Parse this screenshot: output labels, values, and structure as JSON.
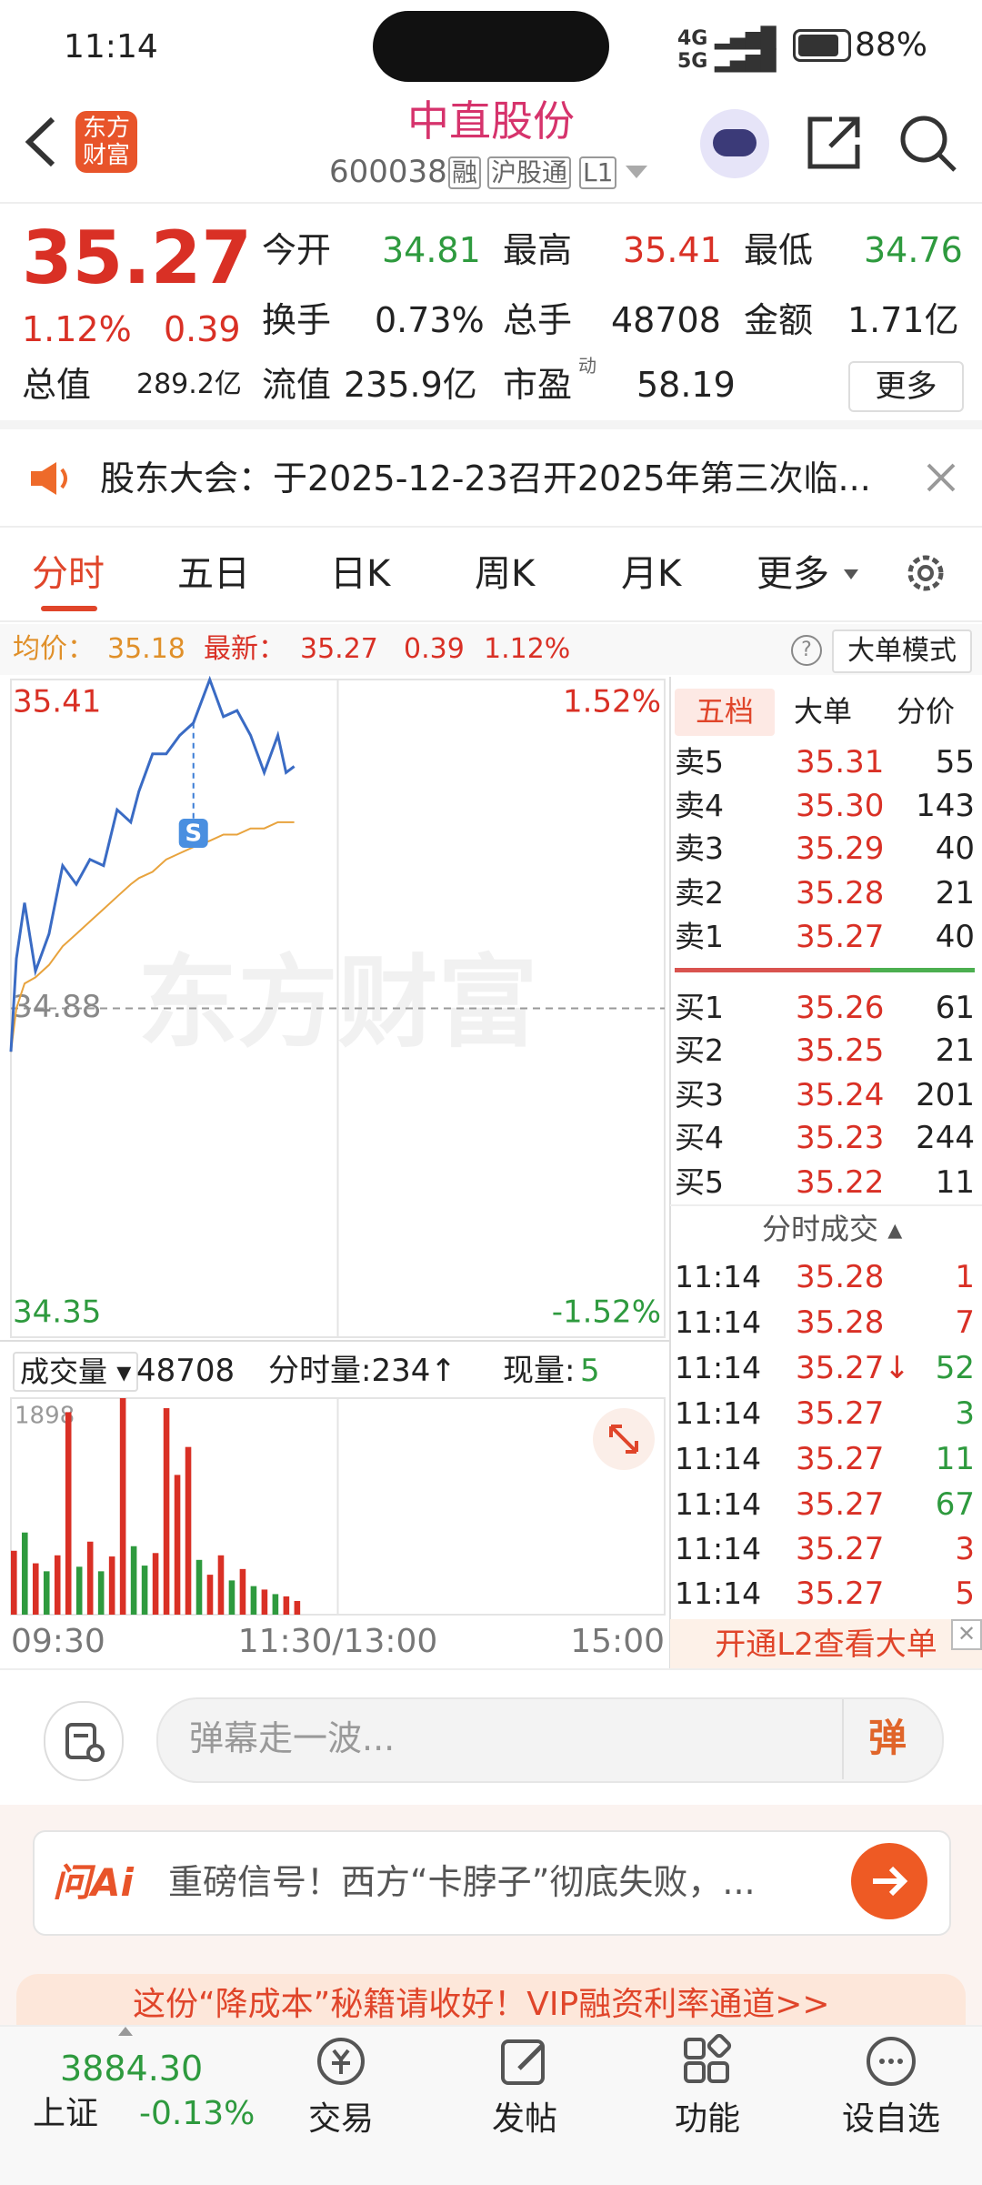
{
  "status_bar": {
    "time": "11:14",
    "battery": "88%"
  },
  "header": {
    "logo": "东方财富",
    "title": "中直股份",
    "code": "600038",
    "tags": [
      "融",
      "沪股通",
      "L1"
    ]
  },
  "quote": {
    "price": "35.27",
    "change_pct": "1.12%",
    "change": "0.39",
    "fields": [
      [
        "今开",
        "34.81"
      ],
      [
        "最高",
        "35.41"
      ],
      [
        "最低",
        "34.76"
      ],
      [
        "换手",
        "0.73%"
      ],
      [
        "总手",
        "48708"
      ],
      [
        "金额",
        "1.71亿"
      ],
      [
        "总值",
        "289.2亿"
      ],
      [
        "流值",
        "235.9亿"
      ],
      [
        "市盈",
        "58.19"
      ]
    ],
    "pe_note": "动",
    "more": "更多"
  },
  "notice": "股东大会：于2025-12-23召开2025年第三次临...",
  "tabs": [
    "分时",
    "五日",
    "日K",
    "周K",
    "月K",
    "更多"
  ],
  "chart_info": {
    "avg_label": "均价：",
    "avg": "35.18",
    "last_label": "最新：",
    "last": "35.27",
    "change": "0.39",
    "change_pct": "1.12%",
    "mode": "大单模式"
  },
  "chart_data": [
    {
      "type": "line",
      "watermark": "东方财富",
      "annotation": "S",
      "x": [
        0,
        2,
        5,
        9,
        14,
        19,
        24,
        29,
        34,
        39,
        44,
        47,
        52,
        57,
        62,
        67,
        73,
        78,
        83,
        88,
        93,
        98,
        101,
        104
      ],
      "series": [
        {
          "color": "#3a6bc4",
          "values": [
            34.81,
            34.96,
            35.05,
            34.94,
            35.0,
            35.11,
            35.08,
            35.12,
            35.11,
            35.2,
            35.18,
            35.23,
            35.29,
            35.29,
            35.32,
            35.34,
            35.41,
            35.35,
            35.36,
            35.32,
            35.26,
            35.32,
            35.26,
            35.27
          ]
        },
        {
          "color": "#e8a33d",
          "values": [
            34.81,
            34.88,
            34.92,
            34.93,
            34.95,
            34.98,
            35.0,
            35.02,
            35.04,
            35.06,
            35.08,
            35.09,
            35.1,
            35.12,
            35.13,
            35.14,
            35.15,
            35.16,
            35.16,
            35.17,
            35.17,
            35.18,
            35.18,
            35.18
          ]
        }
      ],
      "xlim": [
        0,
        240
      ],
      "xticks": [
        {
          "value": 0,
          "label": "09:30"
        },
        {
          "value": 120,
          "label": "11:30/13:00"
        },
        {
          "value": 240,
          "label": "15:00"
        }
      ],
      "ylim": [
        34.35,
        35.41
      ],
      "yticks": [
        35.41,
        34.88,
        34.35
      ],
      "y2lim": [
        -1.52,
        1.52
      ],
      "y2ticks": [
        {
          "value": 1.52,
          "label": "1.52%"
        },
        {
          "value": -1.52,
          "label": "-1.52%"
        }
      ]
    },
    {
      "type": "bar",
      "x": [
        0,
        4,
        8,
        12,
        16,
        20,
        24,
        28,
        32,
        36,
        40,
        44,
        48,
        52,
        56,
        60,
        64,
        68,
        72,
        76,
        80,
        84,
        88,
        92,
        96,
        100,
        104
      ],
      "values": [
        560,
        720,
        450,
        380,
        520,
        1775,
        420,
        640,
        380,
        510,
        1898,
        600,
        430,
        540,
        1810,
        1225,
        1470,
        480,
        350,
        520,
        300,
        400,
        250,
        220,
        180,
        160,
        120
      ],
      "colors": [
        "#d93025",
        "#2e9a3e",
        "#d93025",
        "#2e9a3e",
        "#d93025",
        "#d93025",
        "#2e9a3e",
        "#d93025",
        "#2e9a3e",
        "#d93025",
        "#d93025",
        "#2e9a3e",
        "#2e9a3e",
        "#d93025",
        "#d93025",
        "#d93025",
        "#d93025",
        "#2e9a3e",
        "#d93025",
        "#d93025",
        "#2e9a3e",
        "#d93025",
        "#2e9a3e",
        "#d93025",
        "#2e9a3e",
        "#d93025",
        "#d93025"
      ],
      "xlim": [
        0,
        240
      ],
      "ylim": [
        0,
        1898
      ],
      "yticks": [
        1898
      ]
    }
  ],
  "volume_header": {
    "label": "成交量",
    "total": "48708",
    "minute": "分时量:234↑",
    "now_label": "现量:",
    "now": "5"
  },
  "order_book": {
    "tabs": [
      "五档",
      "大单",
      "分价"
    ],
    "asks": [
      [
        "卖5",
        "35.31",
        "55"
      ],
      [
        "卖4",
        "35.30",
        "143"
      ],
      [
        "卖3",
        "35.29",
        "40"
      ],
      [
        "卖2",
        "35.28",
        "21"
      ],
      [
        "卖1",
        "35.27",
        "40"
      ]
    ],
    "bids": [
      [
        "买1",
        "35.26",
        "61"
      ],
      [
        "买2",
        "35.25",
        "21"
      ],
      [
        "买3",
        "35.24",
        "201"
      ],
      [
        "买4",
        "35.23",
        "244"
      ],
      [
        "买5",
        "35.22",
        "11"
      ]
    ],
    "trades_title": "分时成交",
    "trades": [
      [
        "11:14",
        "35.28",
        "1"
      ],
      [
        "11:14",
        "35.28",
        "7"
      ],
      [
        "11:14",
        "35.27↓",
        "52"
      ],
      [
        "11:14",
        "35.27",
        "3"
      ],
      [
        "11:14",
        "35.27",
        "11"
      ],
      [
        "11:14",
        "35.27",
        "67"
      ],
      [
        "11:14",
        "35.27",
        "3"
      ],
      [
        "11:14",
        "35.27",
        "5"
      ]
    ],
    "l2": "开通L2查看大单"
  },
  "comment_bar": {
    "placeholder": "弹幕走一波...",
    "button": "弹"
  },
  "ai_banner": {
    "logo": "问Ai",
    "text": "重磅信号！西方“卡脖子”彻底失败，..."
  },
  "ad_banner": "这份“降成本”秘籍请收好！VIP融资利率通道>>",
  "bottom_nav": {
    "index_value": "3884.30",
    "index_name": "上证",
    "index_change": "-0.13%",
    "items": [
      "交易",
      "发帖",
      "功能",
      "设自选"
    ]
  }
}
